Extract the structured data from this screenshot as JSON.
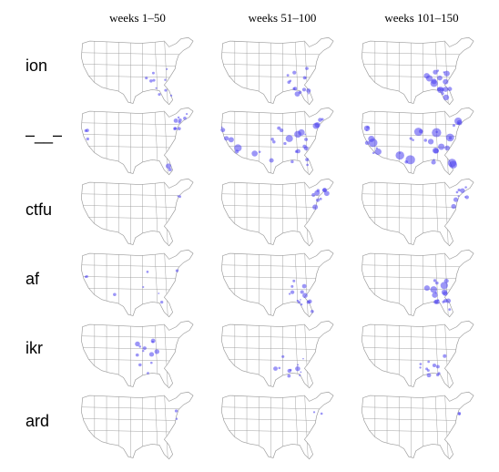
{
  "columns": [
    "weeks 1–50",
    "weeks 51–100",
    "weeks 101–150"
  ],
  "rows": [
    "ion",
    "–__–",
    "ctfu",
    "af",
    "ikr",
    "ard"
  ],
  "colors": {
    "dot": "#4a3ff0",
    "map_line": "#9a9a9a",
    "map_fill": "#ffffff"
  },
  "map_description": "US state outline maps, one per cell; blue circles show term usage by location (circle size ~ usage)",
  "panels": [
    {
      "row": "ion",
      "column": "weeks 1–50",
      "activity_level": "low",
      "region": "southeast"
    },
    {
      "row": "ion",
      "column": "weeks 51–100",
      "activity_level": "medium",
      "region": "southeast"
    },
    {
      "row": "ion",
      "column": "weeks 101–150",
      "activity_level": "high",
      "region": "southeast"
    },
    {
      "row": "–__–",
      "column": "weeks 1–50",
      "activity_level": "medium",
      "region": "northeast, california, florida"
    },
    {
      "row": "–__–",
      "column": "weeks 51–100",
      "activity_level": "high",
      "region": "nationwide"
    },
    {
      "row": "–__–",
      "column": "weeks 101–150",
      "activity_level": "very high",
      "region": "nationwide"
    },
    {
      "row": "ctfu",
      "column": "weeks 1–50",
      "activity_level": "low",
      "region": "philadelphia"
    },
    {
      "row": "ctfu",
      "column": "weeks 51–100",
      "activity_level": "medium",
      "region": "northeast"
    },
    {
      "row": "ctfu",
      "column": "weeks 101–150",
      "activity_level": "medium",
      "region": "northeast"
    },
    {
      "row": "af",
      "column": "weeks 1–50",
      "activity_level": "low",
      "region": "scattered"
    },
    {
      "row": "af",
      "column": "weeks 51–100",
      "activity_level": "medium",
      "region": "southeast"
    },
    {
      "row": "af",
      "column": "weeks 101–150",
      "activity_level": "high",
      "region": "southeast"
    },
    {
      "row": "ikr",
      "column": "weeks 1–50",
      "activity_level": "medium",
      "region": "midwest"
    },
    {
      "row": "ikr",
      "column": "weeks 51–100",
      "activity_level": "medium",
      "region": "south"
    },
    {
      "row": "ikr",
      "column": "weeks 101–150",
      "activity_level": "medium",
      "region": "south"
    },
    {
      "row": "ard",
      "column": "weeks 1–50",
      "activity_level": "low",
      "region": "mid-atlantic"
    },
    {
      "row": "ard",
      "column": "weeks 51–100",
      "activity_level": "low",
      "region": "mid-atlantic"
    },
    {
      "row": "ard",
      "column": "weeks 101–150",
      "activity_level": "low",
      "region": "mid-atlantic"
    }
  ]
}
